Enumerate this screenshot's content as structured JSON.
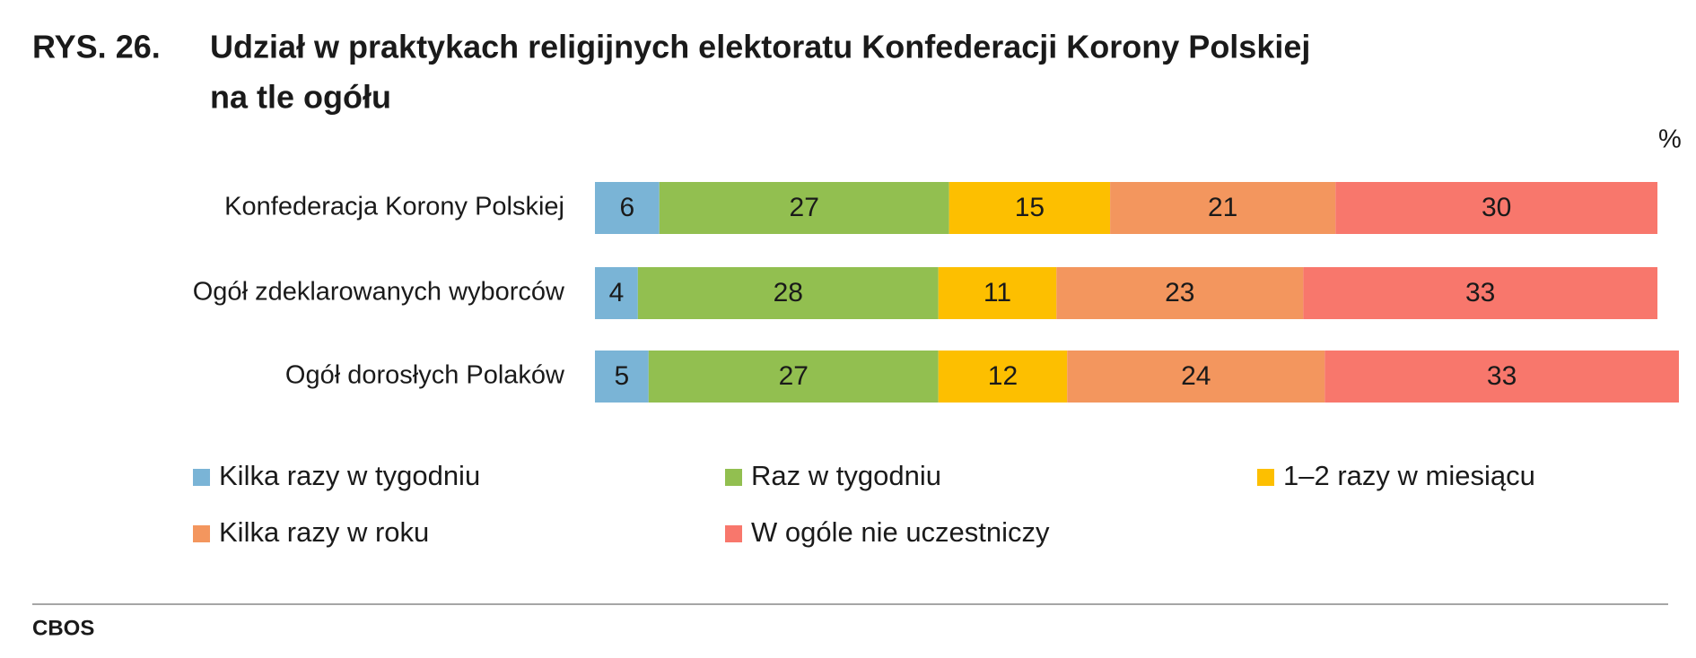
{
  "chart_data": {
    "type": "stacked-bar-horizontal",
    "figure_label": "RYS. 26.",
    "title": [
      "Udział w praktykach religijnych elektoratu Konfederacji Korony Polskiej",
      "na tle ogółu"
    ],
    "unit": "%",
    "source": "CBOS",
    "categories": [
      "Konfederacja Korony Polskiej",
      "Ogół zdeklarowanych wyborców",
      "Ogół dorosłych Polaków"
    ],
    "xlim": [
      0,
      100
    ],
    "series": [
      {
        "name": "Kilka razy w tygodniu",
        "color": "#7ab4d6",
        "values": [
          6,
          4,
          5
        ]
      },
      {
        "name": "Raz w tygodniu",
        "color": "#92bf50",
        "values": [
          27,
          28,
          27
        ]
      },
      {
        "name": "1–2 razy w miesiącu",
        "color": "#fdbf00",
        "values": [
          15,
          11,
          12
        ]
      },
      {
        "name": "Kilka razy w roku",
        "color": "#f3965e",
        "values": [
          21,
          23,
          24
        ]
      },
      {
        "name": "W ogóle nie uczestniczy",
        "color": "#f8776c",
        "values": [
          30,
          33,
          33
        ]
      }
    ]
  }
}
